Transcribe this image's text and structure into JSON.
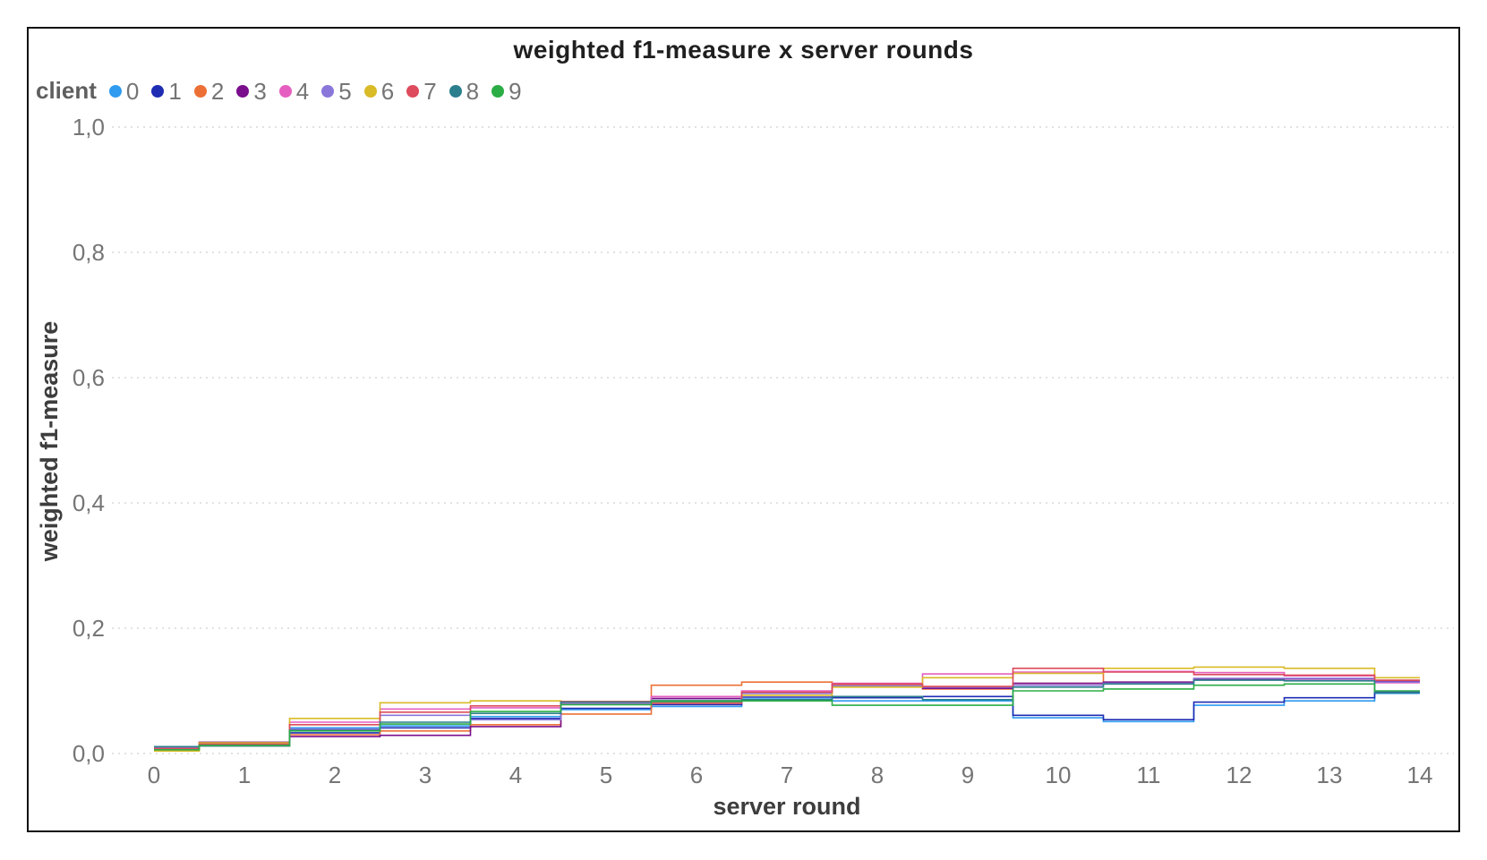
{
  "title": "weighted f1-measure x server rounds",
  "legend": {
    "label": "client",
    "items": [
      {
        "label": "0",
        "color": "#2E9BF0"
      },
      {
        "label": "1",
        "color": "#1F2DB3"
      },
      {
        "label": "2",
        "color": "#EC7036"
      },
      {
        "label": "3",
        "color": "#7A0E8C"
      },
      {
        "label": "4",
        "color": "#E55FC0"
      },
      {
        "label": "5",
        "color": "#8A77D9"
      },
      {
        "label": "6",
        "color": "#D9BA27"
      },
      {
        "label": "7",
        "color": "#DD4B5C"
      },
      {
        "label": "8",
        "color": "#2C7F8C"
      },
      {
        "label": "9",
        "color": "#2BAD45"
      }
    ]
  },
  "chart_data": {
    "type": "line",
    "interpolation": "step-center",
    "title": "weighted f1-measure x server rounds",
    "xlabel": "server round",
    "ylabel": "weighted f1-measure",
    "legend_title": "client",
    "legend_position": "top-left",
    "grid": "dotted-horizontal",
    "x": [
      0,
      1,
      2,
      3,
      4,
      5,
      6,
      7,
      8,
      9,
      10,
      11,
      12,
      13,
      14
    ],
    "xlim": [
      0,
      14
    ],
    "ylim": [
      0,
      1.0
    ],
    "y_ticks": [
      {
        "value": 0.0,
        "label": "0,0"
      },
      {
        "value": 0.2,
        "label": "0,2"
      },
      {
        "value": 0.4,
        "label": "0,4"
      },
      {
        "value": 0.6,
        "label": "0,6"
      },
      {
        "value": 0.8,
        "label": "0,8"
      },
      {
        "value": 1.0,
        "label": "1,0"
      }
    ],
    "series": [
      {
        "name": "0",
        "color": "#2E9BF0",
        "values": [
          0.01,
          0.013,
          0.041,
          0.044,
          0.059,
          0.07,
          0.075,
          0.087,
          0.084,
          0.084,
          0.057,
          0.051,
          0.077,
          0.084,
          0.096
        ]
      },
      {
        "name": "1",
        "color": "#1F2DB3",
        "values": [
          0.009,
          0.014,
          0.033,
          0.041,
          0.056,
          0.072,
          0.078,
          0.09,
          0.089,
          0.091,
          0.061,
          0.054,
          0.082,
          0.089,
          0.098
        ]
      },
      {
        "name": "2",
        "color": "#EC7036",
        "values": [
          0.005,
          0.012,
          0.03,
          0.036,
          0.046,
          0.063,
          0.109,
          0.114,
          0.11,
          0.103,
          0.112,
          0.131,
          0.129,
          0.125,
          0.116
        ]
      },
      {
        "name": "3",
        "color": "#7A0E8C",
        "values": [
          0.008,
          0.018,
          0.027,
          0.029,
          0.043,
          0.08,
          0.088,
          0.097,
          0.107,
          0.104,
          0.112,
          0.114,
          0.119,
          0.119,
          0.115
        ]
      },
      {
        "name": "4",
        "color": "#E55FC0",
        "values": [
          0.007,
          0.015,
          0.05,
          0.071,
          0.073,
          0.081,
          0.091,
          0.1,
          0.112,
          0.127,
          0.13,
          0.131,
          0.129,
          0.124,
          0.113
        ]
      },
      {
        "name": "5",
        "color": "#8A77D9",
        "values": [
          0.009,
          0.016,
          0.039,
          0.061,
          0.054,
          0.079,
          0.085,
          0.096,
          0.108,
          0.106,
          0.109,
          0.112,
          0.12,
          0.12,
          0.114
        ]
      },
      {
        "name": "6",
        "color": "#D9BA27",
        "values": [
          0.004,
          0.017,
          0.056,
          0.081,
          0.084,
          0.083,
          0.082,
          0.093,
          0.106,
          0.121,
          0.128,
          0.136,
          0.138,
          0.136,
          0.121
        ]
      },
      {
        "name": "7",
        "color": "#DD4B5C",
        "values": [
          0.008,
          0.015,
          0.046,
          0.066,
          0.076,
          0.083,
          0.08,
          0.098,
          0.111,
          0.107,
          0.136,
          0.13,
          0.126,
          0.125,
          0.117
        ]
      },
      {
        "name": "8",
        "color": "#2C7F8C",
        "values": [
          0.011,
          0.012,
          0.037,
          0.05,
          0.064,
          0.082,
          0.083,
          0.086,
          0.091,
          0.086,
          0.106,
          0.111,
          0.117,
          0.116,
          0.097
        ]
      },
      {
        "name": "9",
        "color": "#2BAD45",
        "values": [
          0.006,
          0.013,
          0.036,
          0.047,
          0.067,
          0.078,
          0.084,
          0.084,
          0.077,
          0.077,
          0.1,
          0.103,
          0.109,
          0.111,
          0.1
        ]
      }
    ]
  },
  "style": {
    "tick_color": "#757575",
    "axis_title_color": "#3d3d3d",
    "grid_color": "#d9d9d9"
  }
}
